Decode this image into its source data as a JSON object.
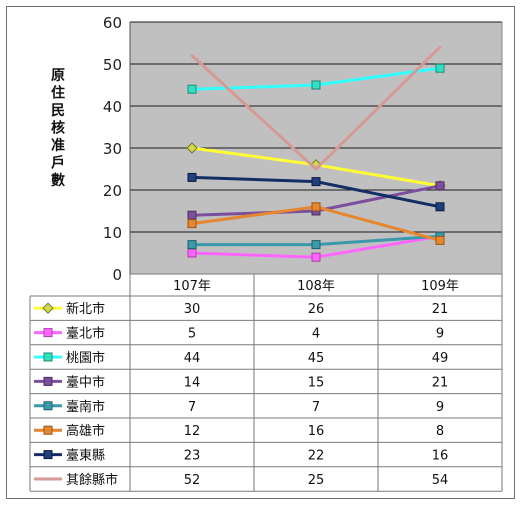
{
  "chart_data": {
    "type": "line",
    "title": "",
    "ylabel": "原住民核准戶數",
    "xlabel": "",
    "categories": [
      "107年",
      "108年",
      "109年"
    ],
    "ylim": [
      0,
      60
    ],
    "yticks": [
      0,
      10,
      20,
      30,
      40,
      50,
      60
    ],
    "grid": true,
    "legend": "data-table-below",
    "series": [
      {
        "name": "新北市",
        "values": [
          30,
          26,
          21
        ],
        "color": "#ffff33",
        "marker": "diamond",
        "marker_fill": "#d6d64a",
        "marker_stroke": "#6a7c1e"
      },
      {
        "name": "臺北市",
        "values": [
          5,
          4,
          9
        ],
        "color": "#ff66ff",
        "marker": "square",
        "marker_fill": "#ff66ff",
        "marker_stroke": "#b03aa8"
      },
      {
        "name": "桃園市",
        "values": [
          44,
          45,
          49
        ],
        "color": "#33ffff",
        "marker": "square",
        "marker_fill": "#33e0c0",
        "marker_stroke": "#1a8a7a"
      },
      {
        "name": "臺中市",
        "values": [
          14,
          15,
          21
        ],
        "color": "#7b4f9e",
        "marker": "square",
        "marker_fill": "#7b4f9e",
        "marker_stroke": "#4a2f60"
      },
      {
        "name": "臺南市",
        "values": [
          7,
          7,
          9
        ],
        "color": "#3a9aac",
        "marker": "square",
        "marker_fill": "#3a9aac",
        "marker_stroke": "#1f5e6a"
      },
      {
        "name": "高雄市",
        "values": [
          12,
          16,
          8
        ],
        "color": "#e6862e",
        "marker": "square",
        "marker_fill": "#e6862e",
        "marker_stroke": "#9a5518"
      },
      {
        "name": "臺東縣",
        "values": [
          23,
          22,
          16
        ],
        "color": "#132f63",
        "marker": "square",
        "marker_fill": "#1f3f80",
        "marker_stroke": "#0b1a38"
      },
      {
        "name": "其餘縣市",
        "values": [
          52,
          25,
          54
        ],
        "color": "#d69a96",
        "marker": "none",
        "marker_fill": "",
        "marker_stroke": ""
      }
    ]
  },
  "colors": {
    "plot_background": "#c0c0c0",
    "grid": "#1a1a1a",
    "table_border": "#7a7a7a"
  }
}
